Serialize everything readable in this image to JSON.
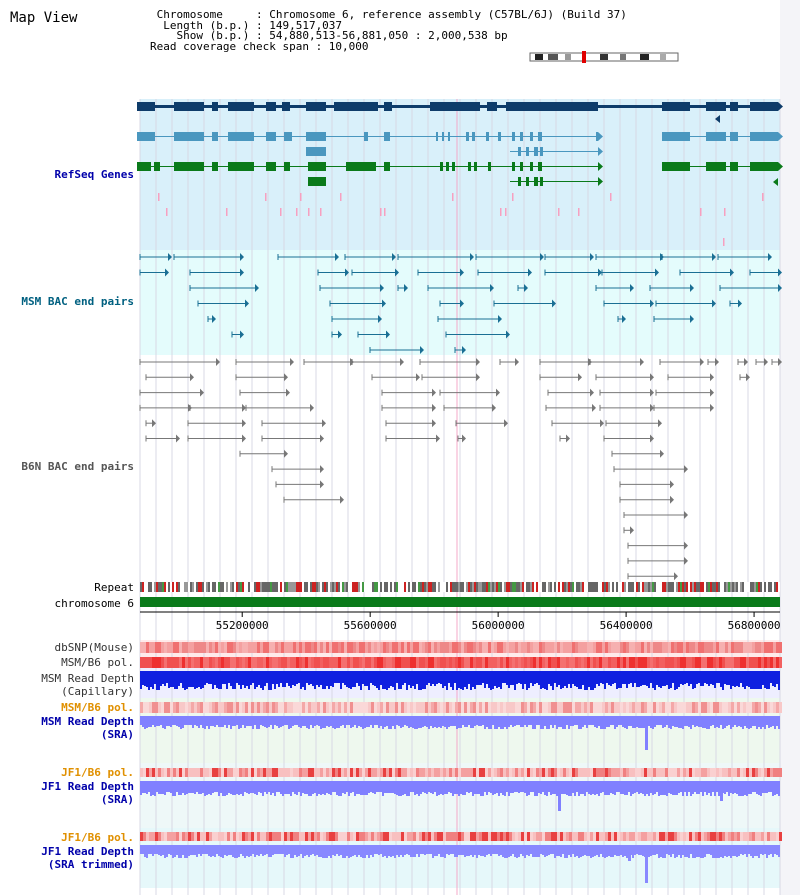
{
  "view_title": "Map View",
  "header": {
    "chromosome_line": " Chromosome     : Chromosome 6, reference assembly (C57BL/6J) (Build 37)",
    "length_line": "  Length (b.p.) : 149,517,037",
    "show_line": "    Show (b.p.) : 54,880,513-56,881,050 : 2,000,538 bp",
    "coverage_line": "Read coverage check span : 10,000"
  },
  "tracks": {
    "refseq": "RefSeq Genes",
    "msm_bac": "MSM BAC end pairs",
    "b6n_bac": "B6N BAC end pairs",
    "repeat": "Repeat",
    "chromosome": "chromosome 6",
    "dbsnp": "dbSNP(Mouse)",
    "msm_pol_1": "MSM/B6 pol.",
    "msm_depth_cap_1": "MSM Read Depth",
    "msm_depth_cap_2": "(Capillary)",
    "msm_pol_2": "MSM/B6 pol.",
    "msm_depth_sra_1": "MSM Read Depth",
    "msm_depth_sra_2": "(SRA)",
    "jf1_pol_1": "JF1/B6 pol.",
    "jf1_depth_sra_1": "JF1 Read Depth",
    "jf1_depth_sra_2": "(SRA)",
    "jf1_pol_2": "JF1/B6 pol.",
    "jf1_depth_trim_1": "JF1 Read Depth",
    "jf1_depth_trim_2": "(SRA trimmed)"
  },
  "axis": {
    "ticks": [
      55200000,
      55600000,
      56000000,
      56400000,
      56800000
    ],
    "range": [
      54880513,
      56881050
    ]
  },
  "colors": {
    "refseq_bg": "#d9f0fa",
    "bac_bg": "#e4fcfc",
    "gene_dark": "#0e3c6a",
    "gene_mid": "#4a97bf",
    "gene_green": "#0a7a1a",
    "snp_red": "#f06060",
    "depth_blue": "#1020e0",
    "depth_light": "#8080ff",
    "label_blue": "#0000aa",
    "label_orange": "#e09000",
    "label_teal": "#006080"
  }
}
